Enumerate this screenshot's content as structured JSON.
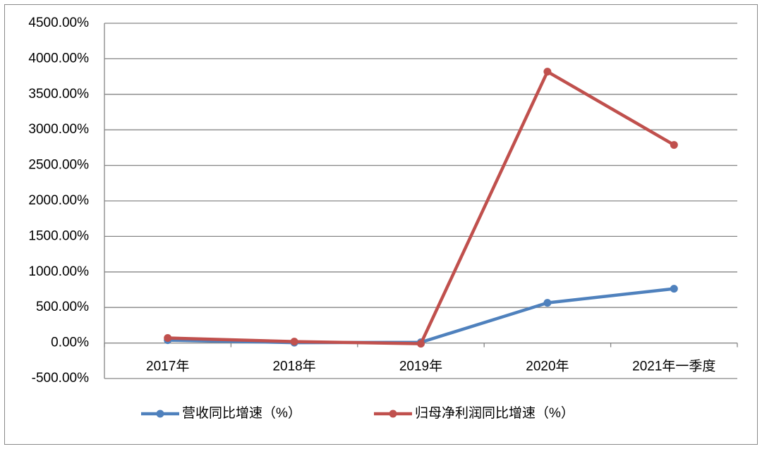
{
  "chart_data": {
    "type": "line",
    "categories": [
      "2017年",
      "2018年",
      "2019年",
      "2020年",
      "2021年一季度"
    ],
    "series": [
      {
        "name": "营收同比增速（%）",
        "color": "#4f81bd",
        "values": [
          40,
          5,
          10,
          565,
          764
        ]
      },
      {
        "name": "归母净利润同比增速（%）",
        "color": "#c0504d",
        "values": [
          70,
          20,
          -10,
          3819,
          2788
        ]
      }
    ],
    "ylim": [
      -500,
      4500
    ],
    "yticks": [
      {
        "value": -500,
        "label": "-500.00%"
      },
      {
        "value": 0,
        "label": "0.00%"
      },
      {
        "value": 500,
        "label": "500.00%"
      },
      {
        "value": 1000,
        "label": "1000.00%"
      },
      {
        "value": 1500,
        "label": "1500.00%"
      },
      {
        "value": 2000,
        "label": "2000.00%"
      },
      {
        "value": 2500,
        "label": "2500.00%"
      },
      {
        "value": 3000,
        "label": "3000.00%"
      },
      {
        "value": 3500,
        "label": "3500.00%"
      },
      {
        "value": 4000,
        "label": "4000.00%"
      },
      {
        "value": 4500,
        "label": "4500.00%"
      }
    ],
    "grid": true,
    "legend": "bottom"
  }
}
